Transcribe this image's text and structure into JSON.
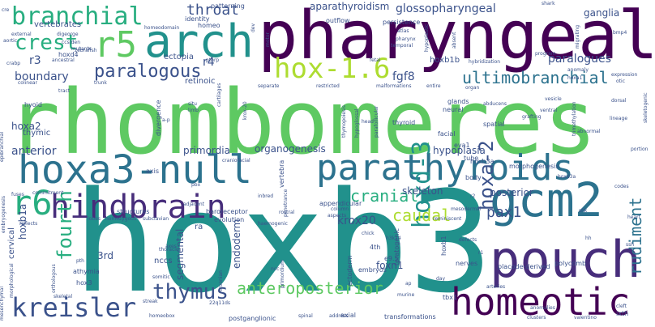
{
  "palette": {
    "background": "#ffffff",
    "colors": [
      "#440154",
      "#472d7b",
      "#3b528b",
      "#2c728e",
      "#21918c",
      "#28ae80",
      "#5ec962",
      "#addc30",
      "#fde725"
    ]
  },
  "words": [
    {
      "text": "hoxb3",
      "weight": 100,
      "color": "#21918c"
    },
    {
      "text": "rhombomeres",
      "weight": 92,
      "color": "#5ec962"
    },
    {
      "text": "pharyngeal",
      "weight": 70,
      "color": "#440154"
    },
    {
      "text": "hoxa3-null",
      "weight": 52,
      "color": "#2c728e"
    },
    {
      "text": "parathyroids",
      "weight": 50,
      "color": "#2c728e"
    },
    {
      "text": "gcm2",
      "weight": 48,
      "color": "#2c728e"
    },
    {
      "text": "pouch",
      "weight": 46,
      "color": "#472d7b"
    },
    {
      "text": "arch",
      "weight": 45,
      "color": "#21918c"
    },
    {
      "text": "homeotic",
      "weight": 44,
      "color": "#440154"
    },
    {
      "text": "hindbrain",
      "weight": 40,
      "color": "#472d7b"
    },
    {
      "text": "r5",
      "weight": 38,
      "color": "#5ec962"
    },
    {
      "text": "branchial",
      "weight": 34,
      "color": "#28ae80"
    },
    {
      "text": "r6",
      "weight": 34,
      "color": "#28ae80"
    },
    {
      "text": "kreisler",
      "weight": 30,
      "color": "#3b528b"
    },
    {
      "text": "hox-1.6",
      "weight": 28,
      "color": "#addc30"
    },
    {
      "text": "crest",
      "weight": 26,
      "color": "#28ae80"
    },
    {
      "text": "hoxd-3",
      "weight": 26,
      "color": "#21918c"
    },
    {
      "text": "fourth",
      "weight": 24,
      "color": "#28ae80"
    },
    {
      "text": "paralogous",
      "weight": 22,
      "color": "#3b528b"
    },
    {
      "text": "thymus",
      "weight": 22,
      "color": "#3b528b"
    },
    {
      "text": "hoxa-2",
      "weight": 20,
      "color": "#3b528b"
    },
    {
      "text": "ultimobranchial",
      "weight": 20,
      "color": "#2c728e"
    },
    {
      "text": "anteroposterior",
      "weight": 20,
      "color": "#5ec962"
    },
    {
      "text": "throat",
      "weight": 18,
      "color": "#3b528b"
    },
    {
      "text": "cranial",
      "weight": 18,
      "color": "#28ae80"
    },
    {
      "text": "caudal",
      "weight": 18,
      "color": "#addc30"
    },
    {
      "text": "pax1",
      "weight": 18,
      "color": "#3b528b"
    },
    {
      "text": "rudiment",
      "weight": 18,
      "color": "#2c728e"
    },
    {
      "text": "glossopharyngeal",
      "weight": 14,
      "color": "#3b528b"
    },
    {
      "text": "aparathyroidism",
      "weight": 14,
      "color": "#3b528b"
    },
    {
      "text": "paralogues",
      "weight": 14,
      "color": "#3b528b"
    },
    {
      "text": "r4",
      "weight": 14,
      "color": "#3b528b"
    },
    {
      "text": "r3",
      "weight": 14,
      "color": "#3b528b"
    },
    {
      "text": "boundary",
      "weight": 14,
      "color": "#3b528b"
    },
    {
      "text": "fgf8",
      "weight": 14,
      "color": "#3b528b"
    },
    {
      "text": "anterior",
      "weight": 14,
      "color": "#3b528b"
    },
    {
      "text": "hoxa2",
      "weight": 14,
      "color": "#3b528b"
    },
    {
      "text": "hoxb1a",
      "weight": 14,
      "color": "#3b528b"
    },
    {
      "text": "primordia",
      "weight": 14,
      "color": "#3b528b"
    },
    {
      "text": "organogenesis",
      "weight": 14,
      "color": "#3b528b"
    },
    {
      "text": "hypoplasia",
      "weight": 14,
      "color": "#3b528b"
    },
    {
      "text": "posterior",
      "weight": 14,
      "color": "#3b528b"
    },
    {
      "text": "skeleton",
      "weight": 14,
      "color": "#3b528b"
    },
    {
      "text": "krox20",
      "weight": 14,
      "color": "#3b528b"
    },
    {
      "text": "endoderm",
      "weight": 14,
      "color": "#3b528b"
    },
    {
      "text": "segmental",
      "weight": 14,
      "color": "#3b528b"
    },
    {
      "text": "3rd",
      "weight": 14,
      "color": "#3b528b"
    },
    {
      "text": "foxn1",
      "weight": 14,
      "color": "#3b528b"
    },
    {
      "text": "ganglia",
      "weight": 12,
      "color": "#3b528b"
    },
    {
      "text": "vertebrates",
      "weight": 10,
      "color": "#3b528b"
    },
    {
      "text": "identity",
      "weight": 8,
      "color": "#3b528b"
    },
    {
      "text": "homeo",
      "weight": 8,
      "color": "#3b528b"
    },
    {
      "text": "patterning",
      "weight": 8,
      "color": "#3b528b"
    },
    {
      "text": "ectopia",
      "weight": 8,
      "color": "#3b528b"
    },
    {
      "text": "retinoic",
      "weight": 8,
      "color": "#3b528b"
    },
    {
      "text": "outflow",
      "weight": 8,
      "color": "#3b528b"
    },
    {
      "text": "persistence",
      "weight": 8,
      "color": "#3b528b"
    },
    {
      "text": "hoxb1b",
      "weight": 8,
      "color": "#3b528b"
    },
    {
      "text": "thymic",
      "weight": 10,
      "color": "#3b528b"
    },
    {
      "text": "hyoid",
      "weight": 8,
      "color": "#3b528b"
    },
    {
      "text": "ra",
      "weight": 10,
      "color": "#3b528b"
    },
    {
      "text": "nccs",
      "weight": 10,
      "color": "#3b528b"
    },
    {
      "text": "hox3",
      "weight": 8,
      "color": "#3b528b"
    },
    {
      "text": "athymia",
      "weight": 8,
      "color": "#3b528b"
    },
    {
      "text": "cervical",
      "weight": 10,
      "color": "#3b528b"
    },
    {
      "text": "axis",
      "weight": 8,
      "color": "#3b528b"
    },
    {
      "text": "structures",
      "weight": 8,
      "color": "#3b528b"
    },
    {
      "text": "baroreceptor",
      "weight": 8,
      "color": "#3b528b"
    },
    {
      "text": "evolution",
      "weight": 8,
      "color": "#3b528b"
    },
    {
      "text": "appendicular",
      "weight": 8,
      "color": "#3b528b"
    },
    {
      "text": "vertebra",
      "weight": 8,
      "color": "#3b528b"
    },
    {
      "text": "facial",
      "weight": 8,
      "color": "#3b528b"
    },
    {
      "text": "eya1",
      "weight": 8,
      "color": "#3b528b"
    },
    {
      "text": "thyroid",
      "weight": 8,
      "color": "#3b528b"
    },
    {
      "text": "neural",
      "weight": 8,
      "color": "#3b528b"
    },
    {
      "text": "glands",
      "weight": 8,
      "color": "#3b528b"
    },
    {
      "text": "spatial",
      "weight": 8,
      "color": "#3b528b"
    },
    {
      "text": "body",
      "weight": 8,
      "color": "#3b528b"
    },
    {
      "text": "tube",
      "weight": 8,
      "color": "#3b528b"
    },
    {
      "text": "nerves",
      "weight": 8,
      "color": "#3b528b"
    },
    {
      "text": "placode-derived",
      "weight": 8,
      "color": "#3b528b"
    },
    {
      "text": "polycomb",
      "weight": 8,
      "color": "#3b528b"
    },
    {
      "text": "tbx1",
      "weight": 8,
      "color": "#3b528b"
    },
    {
      "text": "ixth",
      "weight": 8,
      "color": "#3b528b"
    },
    {
      "text": "transformations",
      "weight": 8,
      "color": "#3b528b"
    },
    {
      "text": "axial",
      "weight": 8,
      "color": "#3b528b"
    },
    {
      "text": "postganglionic",
      "weight": 8,
      "color": "#3b528b"
    },
    {
      "text": "homeobox",
      "weight": 6,
      "color": "#3b528b"
    },
    {
      "text": "embryos",
      "weight": 8,
      "color": "#3b528b"
    },
    {
      "text": "e9.5",
      "weight": 8,
      "color": "#3b528b"
    },
    {
      "text": "4th",
      "weight": 8,
      "color": "#3b528b"
    },
    {
      "text": "arteries",
      "weight": 6,
      "color": "#3b528b"
    },
    {
      "text": "clusters",
      "weight": 6,
      "color": "#3b528b"
    },
    {
      "text": "embryogenesis",
      "weight": 6,
      "color": "#3b528b"
    },
    {
      "text": "mesenchymal",
      "weight": 6,
      "color": "#3b528b"
    },
    {
      "text": "epibranchial",
      "weight": 6,
      "color": "#3b528b"
    },
    {
      "text": "reflects",
      "weight": 6,
      "color": "#3b528b"
    },
    {
      "text": "lobes",
      "weight": 6,
      "color": "#3b528b"
    },
    {
      "text": "homozygous",
      "weight": 6,
      "color": "#3b528b"
    },
    {
      "text": "subclavian",
      "weight": 6,
      "color": "#3b528b"
    },
    {
      "text": "skeletal",
      "weight": 6,
      "color": "#3b528b"
    },
    {
      "text": "streak",
      "weight": 6,
      "color": "#3b528b"
    },
    {
      "text": "spinal",
      "weight": 6,
      "color": "#3b528b"
    },
    {
      "text": "address",
      "weight": 6,
      "color": "#3b528b"
    },
    {
      "text": "thoracic",
      "weight": 6,
      "color": "#3b528b"
    },
    {
      "text": "somitic",
      "weight": 6,
      "color": "#3b528b"
    },
    {
      "text": "pth",
      "weight": 6,
      "color": "#3b528b"
    },
    {
      "text": "croonian",
      "weight": 6,
      "color": "#3b528b"
    },
    {
      "text": "haemogenic",
      "weight": 6,
      "color": "#3b528b"
    },
    {
      "text": "penetrance",
      "weight": 6,
      "color": "#3b528b"
    },
    {
      "text": "inbred",
      "weight": 6,
      "color": "#3b528b"
    },
    {
      "text": "rostral",
      "weight": 6,
      "color": "#3b528b"
    },
    {
      "text": "column",
      "weight": 6,
      "color": "#3b528b"
    },
    {
      "text": "aspects",
      "weight": 6,
      "color": "#3b528b"
    },
    {
      "text": "reminiscent",
      "weight": 6,
      "color": "#3b528b"
    },
    {
      "text": "mesodermal",
      "weight": 6,
      "color": "#3b528b"
    },
    {
      "text": "defects",
      "weight": 6,
      "color": "#3b528b"
    },
    {
      "text": "chick",
      "weight": 6,
      "color": "#3b528b"
    },
    {
      "text": "h3k14",
      "weight": 6,
      "color": "#3b528b"
    },
    {
      "text": "murine",
      "weight": 6,
      "color": "#3b528b"
    },
    {
      "text": "valentino",
      "weight": 6,
      "color": "#3b528b"
    },
    {
      "text": "anomalies",
      "weight": 6,
      "color": "#3b528b"
    },
    {
      "text": "cleft",
      "weight": 6,
      "color": "#3b528b"
    },
    {
      "text": "aortic",
      "weight": 6,
      "color": "#3b528b"
    },
    {
      "text": "external",
      "weight": 6,
      "color": "#3b528b"
    },
    {
      "text": "digeorge",
      "weight": 6,
      "color": "#3b528b"
    },
    {
      "text": "ccs/den",
      "weight": 6,
      "color": "#3b528b"
    },
    {
      "text": "mutants",
      "weight": 6,
      "color": "#3b528b"
    },
    {
      "text": "crabp",
      "weight": 6,
      "color": "#3b528b"
    },
    {
      "text": "ancestral",
      "weight": 6,
      "color": "#3b528b"
    },
    {
      "text": "hoxd4",
      "weight": 8,
      "color": "#3b528b"
    },
    {
      "text": "colinear",
      "weight": 6,
      "color": "#3b528b"
    },
    {
      "text": "zebrafish",
      "weight": 6,
      "color": "#3b528b"
    },
    {
      "text": "homeodomain",
      "weight": 6,
      "color": "#3b528b"
    },
    {
      "text": "trunk",
      "weight": 6,
      "color": "#3b528b"
    },
    {
      "text": "tract",
      "weight": 6,
      "color": "#3b528b"
    },
    {
      "text": "pthrp",
      "weight": 6,
      "color": "#3b528b"
    },
    {
      "text": "cartilages",
      "weight": 6,
      "color": "#3b528b"
    },
    {
      "text": "a-p",
      "weight": 6,
      "color": "#3b528b"
    },
    {
      "text": "divergence",
      "weight": 8,
      "color": "#3b528b"
    },
    {
      "text": "craniofacial",
      "weight": 6,
      "color": "#3b528b"
    },
    {
      "text": "pbx",
      "weight": 6,
      "color": "#3b528b"
    },
    {
      "text": "situ",
      "weight": 6,
      "color": "#3b528b"
    },
    {
      "text": "limb",
      "weight": 6,
      "color": "#3b528b"
    },
    {
      "text": "krox-20",
      "weight": 6,
      "color": "#3b528b"
    },
    {
      "text": "separate",
      "weight": 6,
      "color": "#3b528b"
    },
    {
      "text": "restricted",
      "weight": 6,
      "color": "#3b528b"
    },
    {
      "text": "malformations",
      "weight": 6,
      "color": "#3b528b"
    },
    {
      "text": "entire",
      "weight": 6,
      "color": "#3b528b"
    },
    {
      "text": "organ",
      "weight": 6,
      "color": "#3b528b"
    },
    {
      "text": "abducens",
      "weight": 6,
      "color": "#3b528b"
    },
    {
      "text": "head",
      "weight": 6,
      "color": "#3b528b"
    },
    {
      "text": "hypoglossal",
      "weight": 6,
      "color": "#3b528b"
    },
    {
      "text": "thymopoiesis",
      "weight": 6,
      "color": "#3b528b"
    },
    {
      "text": "parafollicular",
      "weight": 6,
      "color": "#3b528b"
    },
    {
      "text": "atlas",
      "weight": 6,
      "color": "#3b528b"
    },
    {
      "text": "pharynx",
      "weight": 6,
      "color": "#3b528b"
    },
    {
      "text": "temporal",
      "weight": 6,
      "color": "#3b528b"
    },
    {
      "text": "fetal",
      "weight": 6,
      "color": "#3b528b"
    },
    {
      "text": "hypoplastic",
      "weight": 6,
      "color": "#3b528b"
    },
    {
      "text": "absent",
      "weight": 6,
      "color": "#3b528b"
    },
    {
      "text": "shark",
      "weight": 6,
      "color": "#3b528b"
    },
    {
      "text": "migrating",
      "weight": 6,
      "color": "#3b528b"
    },
    {
      "text": "bmp4",
      "weight": 6,
      "color": "#3b528b"
    },
    {
      "text": "program",
      "weight": 6,
      "color": "#3b528b"
    },
    {
      "text": "hybridization",
      "weight": 6,
      "color": "#3b528b"
    },
    {
      "text": "skeletogenic",
      "weight": 6,
      "color": "#3b528b"
    },
    {
      "text": "trimethylation",
      "weight": 6,
      "color": "#3b528b"
    },
    {
      "text": "abnormal",
      "weight": 6,
      "color": "#3b528b"
    },
    {
      "text": "portion",
      "weight": 6,
      "color": "#3b528b"
    },
    {
      "text": "hoxb3a",
      "weight": 8,
      "color": "#3b528b"
    },
    {
      "text": "morphogenesis",
      "weight": 8,
      "color": "#3b528b"
    },
    {
      "text": "motor",
      "weight": 6,
      "color": "#3b528b"
    },
    {
      "text": "dev",
      "weight": 6,
      "color": "#3b528b"
    },
    {
      "text": "fuses",
      "weight": 6,
      "color": "#3b528b"
    },
    {
      "text": "adjacent",
      "weight": 6,
      "color": "#3b528b"
    },
    {
      "text": "commitment",
      "weight": 6,
      "color": "#3b528b"
    },
    {
      "text": "primordium",
      "weight": 6,
      "color": "#3b528b"
    },
    {
      "text": "teratogenic",
      "weight": 8,
      "color": "#3b528b"
    },
    {
      "text": "ectoderm",
      "weight": 8,
      "color": "#3b528b"
    },
    {
      "text": "day",
      "weight": 6,
      "color": "#3b528b"
    },
    {
      "text": "hoxb1",
      "weight": 8,
      "color": "#3b528b"
    },
    {
      "text": "r2",
      "weight": 6,
      "color": "#3b528b"
    },
    {
      "text": "cre",
      "weight": 6,
      "color": "#3b528b"
    },
    {
      "text": "morphological",
      "weight": 6,
      "color": "#3b528b"
    },
    {
      "text": "orthologous",
      "weight": 6,
      "color": "#3b528b"
    },
    {
      "text": "22q11ds",
      "weight": 6,
      "color": "#3b528b"
    },
    {
      "text": "axes",
      "weight": 6,
      "color": "#3b528b"
    },
    {
      "text": "ncc",
      "weight": 6,
      "color": "#3b528b"
    },
    {
      "text": "ap",
      "weight": 6,
      "color": "#3b528b"
    },
    {
      "text": "shk",
      "weight": 6,
      "color": "#3b528b"
    },
    {
      "text": "hh",
      "weight": 6,
      "color": "#3b528b"
    },
    {
      "text": "r1",
      "weight": 6,
      "color": "#3b528b"
    },
    {
      "text": "codes",
      "weight": 6,
      "color": "#3b528b"
    },
    {
      "text": "ssh",
      "weight": 6,
      "color": "#3b528b"
    },
    {
      "text": "hoxd3a",
      "weight": 6,
      "color": "#3b528b"
    },
    {
      "text": "heart",
      "weight": 6,
      "color": "#3b528b"
    },
    {
      "text": "anomaly",
      "weight": 6,
      "color": "#3b528b"
    },
    {
      "text": "hoxa1",
      "weight": 6,
      "color": "#3b528b"
    },
    {
      "text": "expression",
      "weight": 6,
      "color": "#3b528b"
    },
    {
      "text": "otic",
      "weight": 6,
      "color": "#3b528b"
    },
    {
      "text": "vesicle",
      "weight": 6,
      "color": "#3b528b"
    },
    {
      "text": "dorsal",
      "weight": 6,
      "color": "#3b528b"
    },
    {
      "text": "ventral",
      "weight": 6,
      "color": "#3b528b"
    },
    {
      "text": "grafting",
      "weight": 6,
      "color": "#3b528b"
    },
    {
      "text": "lineage",
      "weight": 6,
      "color": "#3b528b"
    },
    {
      "text": "mrna",
      "weight": 6,
      "color": "#3b528b"
    },
    {
      "text": "enhancer",
      "weight": 6,
      "color": "#3b528b"
    },
    {
      "text": "regulatory",
      "weight": 6,
      "color": "#3b528b"
    },
    {
      "text": "element",
      "weight": 6,
      "color": "#3b528b"
    }
  ]
}
